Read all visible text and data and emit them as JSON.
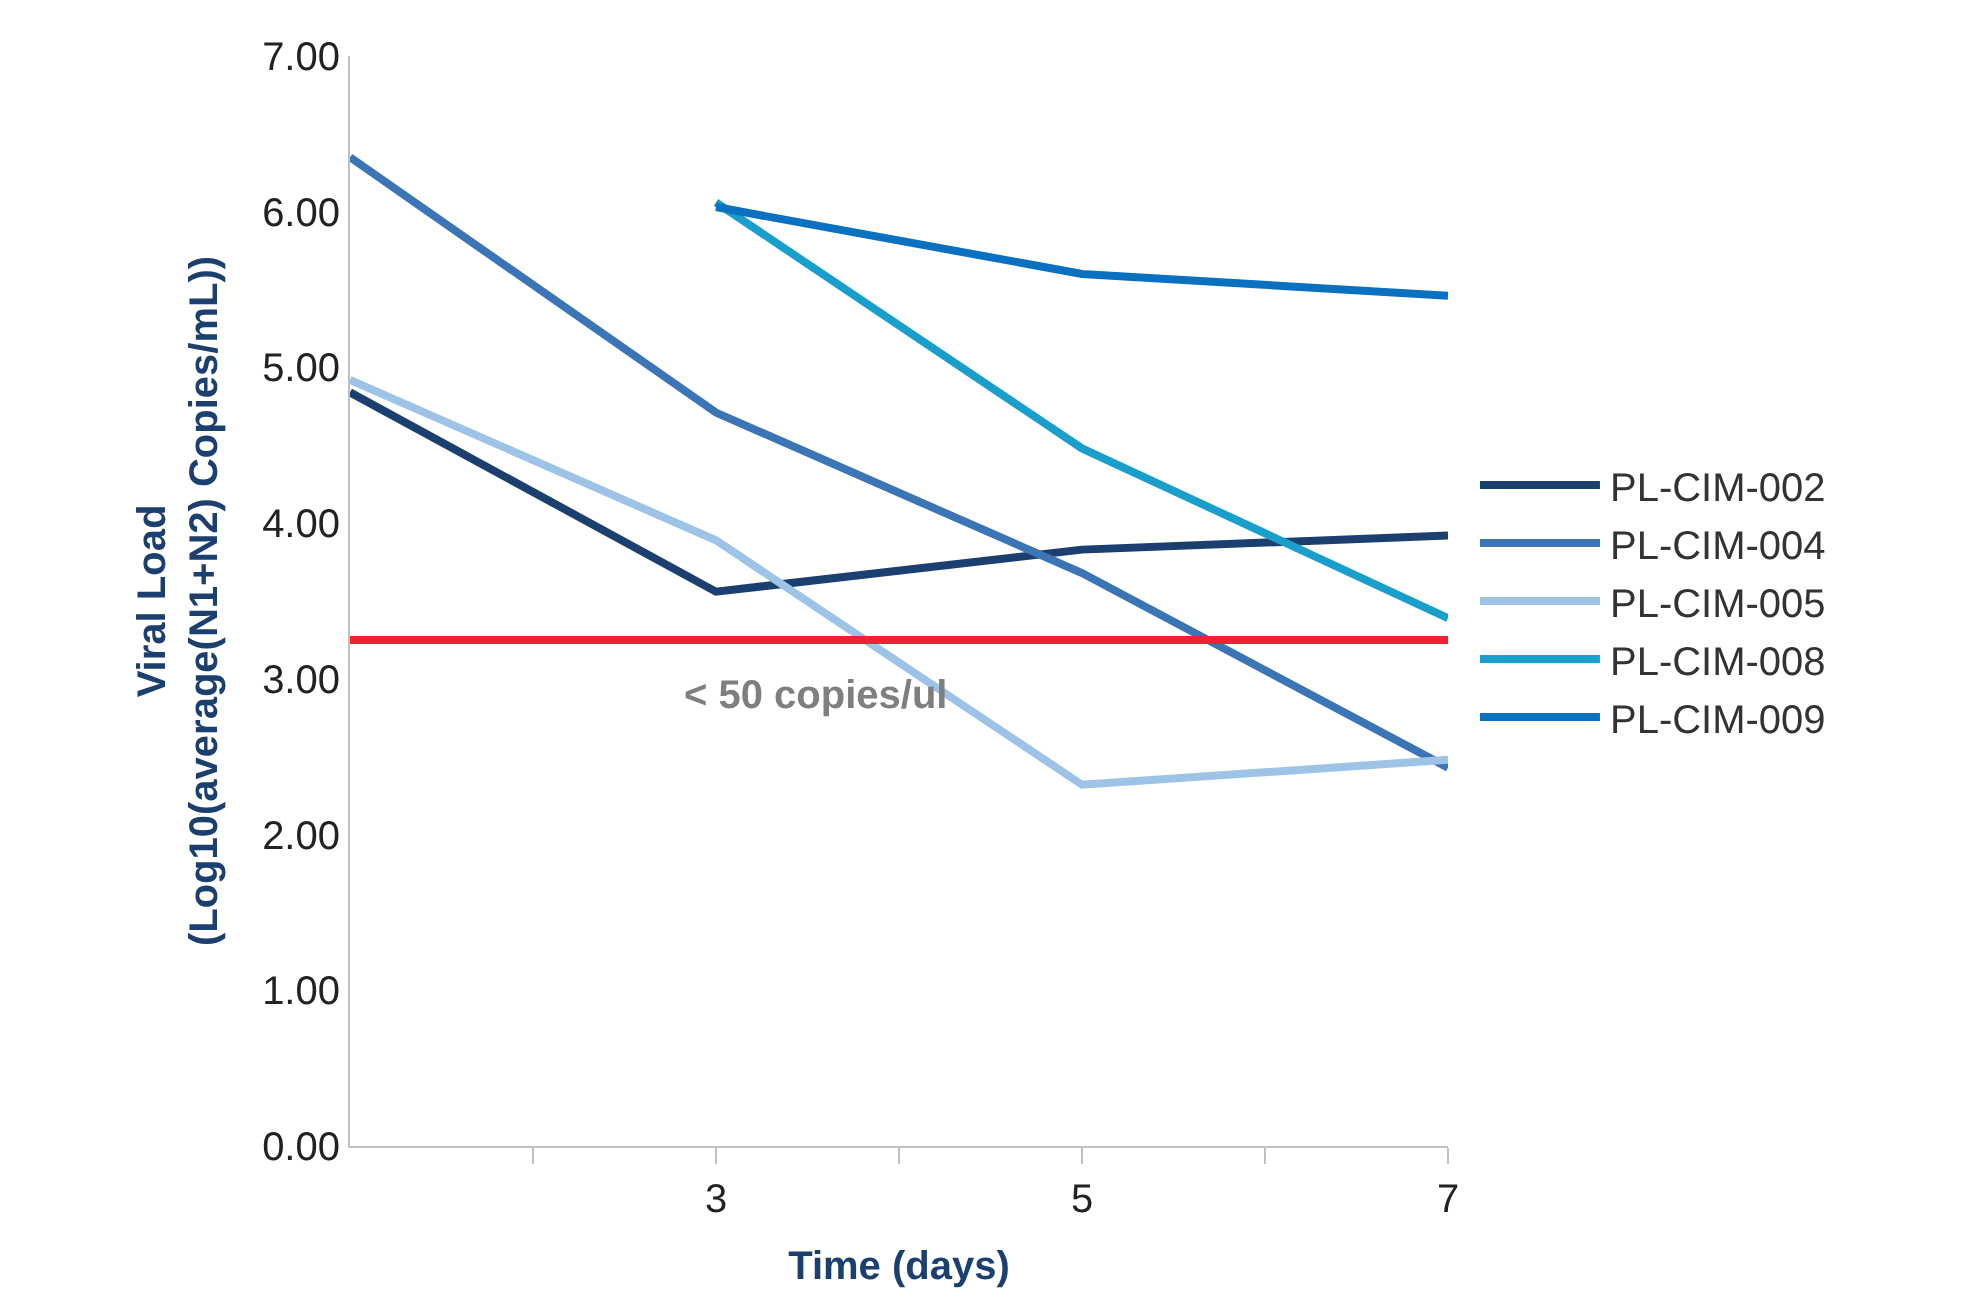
{
  "chart_data": {
    "type": "line",
    "xlabel": "Time (days)",
    "ylabel": "Viral Load\n(Log10(average(N1+N2) Copies/mL))",
    "xlim": [
      1,
      7
    ],
    "xticks": [
      {
        "value": 2,
        "label": null
      },
      3,
      {
        "value": 4,
        "label": null
      },
      5,
      {
        "value": 6,
        "label": null
      },
      7
    ],
    "ylim": [
      0,
      7
    ],
    "yticks": [
      {
        "value": 0,
        "label": "0.00"
      },
      {
        "value": 1,
        "label": "1.00"
      },
      {
        "value": 2,
        "label": "2.00"
      },
      {
        "value": 3,
        "label": "3.00"
      },
      {
        "value": 4,
        "label": "4.00"
      },
      {
        "value": 5,
        "label": "5.00"
      },
      {
        "value": 6,
        "label": "6.00"
      },
      {
        "value": 7,
        "label": "7.00"
      }
    ],
    "series": [
      {
        "name": "PL-CIM-002",
        "color": "#1b3f6f",
        "x": [
          1,
          3,
          5,
          7
        ],
        "values": [
          4.84,
          3.56,
          3.83,
          3.92
        ]
      },
      {
        "name": "PL-CIM-004",
        "color": "#3b75b5",
        "x": [
          1,
          3,
          5,
          7
        ],
        "values": [
          6.35,
          4.71,
          3.68,
          2.43
        ]
      },
      {
        "name": "PL-CIM-005",
        "color": "#9dc3e6",
        "x": [
          1,
          3,
          5,
          7
        ],
        "values": [
          4.92,
          3.89,
          2.32,
          2.48
        ]
      },
      {
        "name": "PL-CIM-008",
        "color": "#1a9fcc",
        "x": [
          3,
          5,
          7
        ],
        "values": [
          6.06,
          4.48,
          3.39
        ]
      },
      {
        "name": "PL-CIM-009",
        "color": "#0a70c0",
        "x": [
          3,
          5,
          7
        ],
        "values": [
          6.03,
          5.6,
          5.46
        ]
      }
    ],
    "ref_lines": [
      {
        "axis": "y",
        "value": 3.25,
        "label": "< 50 copies/ul",
        "color": "#ee2233"
      }
    ],
    "legend": "right",
    "marker": "none",
    "line_style": "solid"
  }
}
